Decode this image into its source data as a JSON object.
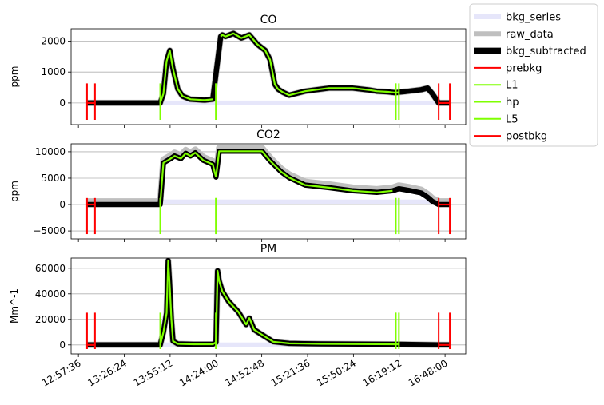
{
  "chart_data": [
    {
      "type": "line",
      "title": "CO",
      "ylabel": "ppm",
      "xlim": [
        "12:53:00",
        "17:01:00"
      ],
      "ylim": [
        -700,
        2400
      ],
      "yticks": [
        0,
        1000,
        2000
      ],
      "ytick_labels": [
        "0",
        "1000",
        "2000"
      ],
      "grid": "y",
      "bkg_level": 0,
      "series": [
        {
          "name": "raw_data",
          "color": "#bfbfbf",
          "x": [
            "13:03:00",
            "13:08:00",
            "13:49:00",
            "13:51:00",
            "13:53:00",
            "13:55:00",
            "13:57:00",
            "14:00:00",
            "14:03:00",
            "14:08:00",
            "14:17:00",
            "14:22:00",
            "14:27:00",
            "14:28:00",
            "14:30:00",
            "14:35:00",
            "14:40:00",
            "14:45:00",
            "14:50:00",
            "14:55:00",
            "14:58:00",
            "15:01:00",
            "15:03:00",
            "15:06:00",
            "15:10:00",
            "15:20:00",
            "15:35:00",
            "15:50:00",
            "16:00:00",
            "16:05:00",
            "16:12:00",
            "16:17:00",
            "16:19:00",
            "16:25:00",
            "16:33:00",
            "16:37:00",
            "16:40:00",
            "16:44:00",
            "16:51:00"
          ],
          "y": [
            0,
            0,
            0,
            300,
            1350,
            1700,
            1100,
            450,
            220,
            120,
            90,
            120,
            2150,
            2200,
            2150,
            2250,
            2100,
            2200,
            1900,
            1700,
            1400,
            600,
            450,
            350,
            250,
            380,
            480,
            480,
            420,
            380,
            360,
            330,
            350,
            380,
            430,
            480,
            300,
            0,
            0
          ]
        },
        {
          "name": "bkg_subtracted",
          "color": "#000000",
          "x": [
            "13:03:00",
            "13:08:00",
            "13:49:00",
            "13:51:00",
            "13:53:00",
            "13:55:00",
            "13:57:00",
            "14:00:00",
            "14:03:00",
            "14:08:00",
            "14:17:00",
            "14:22:00",
            "14:27:00",
            "14:28:00",
            "14:30:00",
            "14:35:00",
            "14:40:00",
            "14:45:00",
            "14:50:00",
            "14:55:00",
            "14:58:00",
            "15:01:00",
            "15:03:00",
            "15:06:00",
            "15:10:00",
            "15:20:00",
            "15:35:00",
            "15:50:00",
            "16:00:00",
            "16:05:00",
            "16:12:00",
            "16:17:00",
            "16:19:00",
            "16:25:00",
            "16:33:00",
            "16:37:00",
            "16:40:00",
            "16:44:00",
            "16:51:00"
          ],
          "y": [
            0,
            0,
            0,
            300,
            1350,
            1700,
            1100,
            450,
            220,
            120,
            90,
            120,
            2150,
            2200,
            2150,
            2250,
            2100,
            2200,
            1900,
            1700,
            1400,
            600,
            450,
            350,
            250,
            380,
            480,
            480,
            420,
            380,
            360,
            330,
            350,
            380,
            430,
            480,
            300,
            0,
            0
          ]
        }
      ],
      "windows": [
        {
          "name": "prebkg",
          "color": "#ff0000",
          "x": [
            "13:03:00",
            "13:08:00"
          ]
        },
        {
          "name": "L1",
          "color": "#7fff00",
          "x": [
            "13:49:00",
            "14:24:00"
          ]
        },
        {
          "name": "hp",
          "color": "#7fff00",
          "x": [
            "14:24:00",
            "16:17:00"
          ]
        },
        {
          "name": "L5",
          "color": "#7fff00",
          "x": [
            "16:17:00",
            "16:19:00"
          ]
        },
        {
          "name": "postbkg",
          "color": "#ff0000",
          "x": [
            "16:44:00",
            "16:51:00"
          ]
        }
      ]
    },
    {
      "type": "line",
      "title": "CO2",
      "ylabel": "ppm",
      "xlim": [
        "12:53:00",
        "17:01:00"
      ],
      "ylim": [
        -6500,
        11500
      ],
      "yticks": [
        -5000,
        0,
        5000,
        10000
      ],
      "ytick_labels": [
        "−5000",
        "0",
        "5000",
        "10000"
      ],
      "grid": "y",
      "bkg_level": 500,
      "series": [
        {
          "name": "raw_data",
          "color": "#bfbfbf",
          "x": [
            "13:03:00",
            "13:08:00",
            "13:49:00",
            "13:51:00",
            "13:55:00",
            "13:58:00",
            "14:02:00",
            "14:05:00",
            "14:08:00",
            "14:11:00",
            "14:16:00",
            "14:22:00",
            "14:24:00",
            "14:26:00",
            "14:40:00",
            "14:53:00",
            "14:58:00",
            "15:05:00",
            "15:10:00",
            "15:20:00",
            "15:35:00",
            "15:50:00",
            "16:05:00",
            "16:15:00",
            "16:19:00",
            "16:25:00",
            "16:33:00",
            "16:37:00",
            "16:40:00",
            "16:44:00",
            "16:51:00"
          ],
          "y": [
            600,
            600,
            600,
            8500,
            9200,
            9800,
            9300,
            10300,
            9800,
            10400,
            9000,
            8200,
            5800,
            10700,
            10700,
            10700,
            8900,
            6800,
            5700,
            4300,
            3800,
            3200,
            2900,
            3200,
            3600,
            3300,
            2800,
            2000,
            1200,
            600,
            600
          ]
        },
        {
          "name": "bkg_subtracted",
          "color": "#000000",
          "x": [
            "13:03:00",
            "13:08:00",
            "13:49:00",
            "13:51:00",
            "13:55:00",
            "13:58:00",
            "14:02:00",
            "14:05:00",
            "14:08:00",
            "14:11:00",
            "14:16:00",
            "14:22:00",
            "14:24:00",
            "14:26:00",
            "14:40:00",
            "14:53:00",
            "14:58:00",
            "15:05:00",
            "15:10:00",
            "15:20:00",
            "15:35:00",
            "15:50:00",
            "16:05:00",
            "16:15:00",
            "16:19:00",
            "16:25:00",
            "16:33:00",
            "16:37:00",
            "16:40:00",
            "16:44:00",
            "16:51:00"
          ],
          "y": [
            0,
            0,
            0,
            7900,
            8600,
            9200,
            8700,
            9700,
            9200,
            9800,
            8400,
            7600,
            5200,
            10100,
            10100,
            10100,
            8300,
            6200,
            5100,
            3700,
            3200,
            2600,
            2300,
            2600,
            3000,
            2700,
            2200,
            1400,
            600,
            0,
            0
          ]
        }
      ],
      "windows": [
        {
          "name": "prebkg",
          "color": "#ff0000",
          "x": [
            "13:03:00",
            "13:08:00"
          ]
        },
        {
          "name": "L1",
          "color": "#7fff00",
          "x": [
            "13:49:00",
            "14:24:00"
          ]
        },
        {
          "name": "hp",
          "color": "#7fff00",
          "x": [
            "14:24:00",
            "16:17:00"
          ]
        },
        {
          "name": "L5",
          "color": "#7fff00",
          "x": [
            "16:17:00",
            "16:19:00"
          ]
        },
        {
          "name": "postbkg",
          "color": "#ff0000",
          "x": [
            "16:44:00",
            "16:51:00"
          ]
        }
      ]
    },
    {
      "type": "line",
      "title": "PM",
      "ylabel": "Mm^-1",
      "xlim": [
        "12:53:00",
        "17:01:00"
      ],
      "ylim": [
        -7000,
        68000
      ],
      "yticks": [
        0,
        20000,
        40000,
        60000
      ],
      "ytick_labels": [
        "0",
        "20000",
        "40000",
        "60000"
      ],
      "grid": "y",
      "bkg_level": 0,
      "series": [
        {
          "name": "raw_data",
          "color": "#bfbfbf",
          "x": [
            "13:03:00",
            "13:08:00",
            "13:45:00",
            "13:49:00",
            "13:51:00",
            "13:53:00",
            "13:54:00",
            "13:55:00",
            "13:56:00",
            "13:57:00",
            "14:00:00",
            "14:10:00",
            "14:22:00",
            "14:24:00",
            "14:25:00",
            "14:26:00",
            "14:28:00",
            "14:32:00",
            "14:38:00",
            "14:43:00",
            "14:45:00",
            "14:48:00",
            "14:53:00",
            "15:00:00",
            "15:10:00",
            "15:30:00",
            "16:17:00",
            "16:19:00",
            "16:44:00",
            "16:51:00"
          ],
          "y": [
            0,
            0,
            0,
            0,
            10000,
            25000,
            66000,
            45000,
            20000,
            3000,
            800,
            500,
            500,
            2000,
            58000,
            50000,
            42000,
            34000,
            26000,
            16000,
            21000,
            12000,
            8000,
            2500,
            1200,
            800,
            500,
            500,
            0,
            0
          ]
        },
        {
          "name": "bkg_subtracted",
          "color": "#000000",
          "x": [
            "13:03:00",
            "13:08:00",
            "13:45:00",
            "13:49:00",
            "13:51:00",
            "13:53:00",
            "13:54:00",
            "13:55:00",
            "13:56:00",
            "13:57:00",
            "14:00:00",
            "14:10:00",
            "14:22:00",
            "14:24:00",
            "14:25:00",
            "14:26:00",
            "14:28:00",
            "14:32:00",
            "14:38:00",
            "14:43:00",
            "14:45:00",
            "14:48:00",
            "14:53:00",
            "15:00:00",
            "15:10:00",
            "15:30:00",
            "16:17:00",
            "16:19:00",
            "16:44:00",
            "16:51:00"
          ],
          "y": [
            0,
            0,
            0,
            0,
            10000,
            25000,
            66000,
            45000,
            20000,
            3000,
            800,
            500,
            500,
            2000,
            58000,
            50000,
            42000,
            34000,
            26000,
            16000,
            21000,
            12000,
            8000,
            2500,
            1200,
            800,
            500,
            500,
            0,
            0
          ]
        }
      ],
      "windows": [
        {
          "name": "prebkg",
          "color": "#ff0000",
          "x": [
            "13:03:00",
            "13:08:00"
          ]
        },
        {
          "name": "L1",
          "color": "#7fff00",
          "x": [
            "13:49:00",
            "14:24:00"
          ]
        },
        {
          "name": "hp",
          "color": "#7fff00",
          "x": [
            "14:24:00",
            "16:17:00"
          ]
        },
        {
          "name": "L5",
          "color": "#7fff00",
          "x": [
            "16:17:00",
            "16:19:00"
          ]
        },
        {
          "name": "postbkg",
          "color": "#ff0000",
          "x": [
            "16:44:00",
            "16:51:00"
          ]
        }
      ]
    }
  ],
  "xticks": {
    "values": [
      "12:57:36",
      "13:26:24",
      "13:55:12",
      "14:24:00",
      "14:52:48",
      "15:21:36",
      "15:50:24",
      "16:19:12",
      "16:48:00"
    ],
    "labels": [
      "12:57:36",
      "13:26:24",
      "13:55:12",
      "14:24:00",
      "14:52:48",
      "15:21:36",
      "15:50:24",
      "16:19:12",
      "16:48:00"
    ]
  },
  "legend": {
    "placement": "upper-right-outside",
    "entries": [
      {
        "label": "bkg_series",
        "color": "#e6e6fa",
        "weight": "thick"
      },
      {
        "label": "raw_data",
        "color": "#bfbfbf",
        "weight": "thick"
      },
      {
        "label": "bkg_subtracted",
        "color": "#000000",
        "weight": "thicker"
      },
      {
        "label": "prebkg",
        "color": "#ff0000",
        "weight": "normal"
      },
      {
        "label": "L1",
        "color": "#7fff00",
        "weight": "normal"
      },
      {
        "label": "hp",
        "color": "#7fff00",
        "weight": "normal"
      },
      {
        "label": "L5",
        "color": "#7fff00",
        "weight": "normal"
      },
      {
        "label": "postbkg",
        "color": "#ff0000",
        "weight": "normal"
      }
    ]
  }
}
